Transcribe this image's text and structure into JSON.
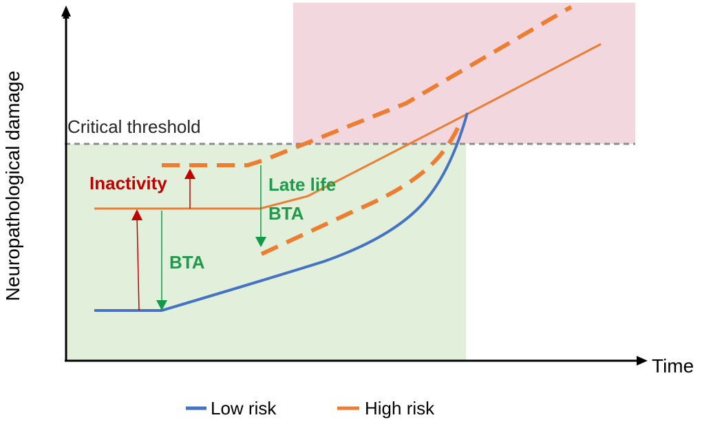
{
  "axes": {
    "y_label": "Neuropathological damage",
    "x_label": "Time"
  },
  "threshold": {
    "label": "Critical threshold"
  },
  "annotations": {
    "inactivity": "Inactivity",
    "late_life_line1": "Late life",
    "late_life_line2": "BTA",
    "bta": "BTA"
  },
  "legend": {
    "low_risk": "Low risk",
    "high_risk": "High risk"
  },
  "colors": {
    "low_risk": "#4472C4",
    "high_risk": "#ED7D31",
    "safe_zone": "#E2EFDA",
    "danger_zone": "#F2D7DF",
    "threshold": "#8C8C8C",
    "bta_arrow": "#109A48",
    "inactivity_arrow": "#C00000",
    "inactivity_text": "#C00000",
    "bta_text": "#1E9A4A"
  }
}
